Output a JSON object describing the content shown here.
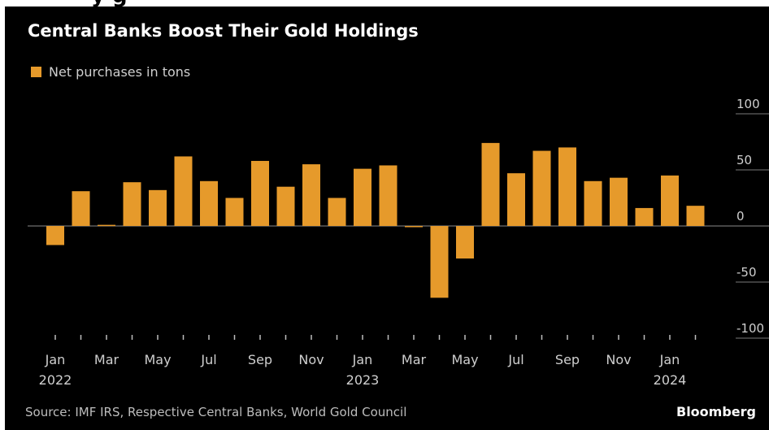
{
  "header": {
    "clipped_heading": "y    g"
  },
  "chart_data": {
    "type": "bar",
    "title": "Central Banks Boost Their Gold Holdings",
    "source": "Source: IMF IRS, Respective Central Banks, World Gold Council",
    "brand": "Bloomberg",
    "series": [
      {
        "name": "Net purchases in tons",
        "color": "#e69a2b",
        "values": [
          -17,
          31,
          1,
          39,
          32,
          62,
          40,
          25,
          58,
          35,
          55,
          25,
          51,
          54,
          0,
          -64,
          -29,
          74,
          47,
          67,
          70,
          40,
          43,
          16,
          45,
          18
        ]
      }
    ],
    "categories": [
      "Jan 2022",
      "Feb 2022",
      "Mar 2022",
      "Apr 2022",
      "May 2022",
      "Jun 2022",
      "Jul 2022",
      "Aug 2022",
      "Sep 2022",
      "Oct 2022",
      "Nov 2022",
      "Dec 2022",
      "Jan 2023",
      "Feb 2023",
      "Mar 2023",
      "Apr 2023",
      "May 2023",
      "Jun 2023",
      "Jul 2023",
      "Aug 2023",
      "Sep 2023",
      "Oct 2023",
      "Nov 2023",
      "Dec 2023",
      "Jan 2024",
      "Feb 2024"
    ],
    "x_ticks": [
      {
        "index": 0,
        "line1": "Jan",
        "line2": "2022"
      },
      {
        "index": 2,
        "line1": "Mar",
        "line2": ""
      },
      {
        "index": 4,
        "line1": "May",
        "line2": ""
      },
      {
        "index": 6,
        "line1": "Jul",
        "line2": ""
      },
      {
        "index": 8,
        "line1": "Sep",
        "line2": ""
      },
      {
        "index": 10,
        "line1": "Nov",
        "line2": ""
      },
      {
        "index": 12,
        "line1": "Jan",
        "line2": "2023"
      },
      {
        "index": 14,
        "line1": "Mar",
        "line2": ""
      },
      {
        "index": 16,
        "line1": "May",
        "line2": ""
      },
      {
        "index": 18,
        "line1": "Jul",
        "line2": ""
      },
      {
        "index": 20,
        "line1": "Sep",
        "line2": ""
      },
      {
        "index": 22,
        "line1": "Nov",
        "line2": ""
      },
      {
        "index": 24,
        "line1": "Jan",
        "line2": "2024"
      }
    ],
    "y_ticks": [
      {
        "value": 100,
        "label": "100"
      },
      {
        "value": 50,
        "label": "50"
      },
      {
        "value": 0,
        "label": "0"
      },
      {
        "value": -50,
        "label": "-50"
      },
      {
        "value": -100,
        "label": "-100"
      }
    ],
    "ylim": [
      -100,
      100
    ],
    "grid": "horizontal",
    "y_axis_position": "right",
    "legend_position": "top-left"
  }
}
